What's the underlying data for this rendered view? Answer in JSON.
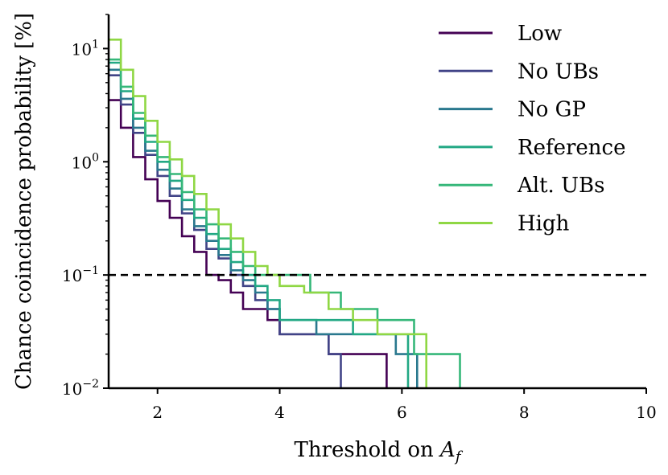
{
  "chart_data": {
    "type": "line",
    "xlabel": "Threshold on A_f",
    "ylabel": "Chance coincidence probability [%]",
    "xlim": [
      1.2,
      10
    ],
    "ylim": [
      0.01,
      20
    ],
    "yscale": "log",
    "grid": false,
    "legend_position": "top-right",
    "x_ticks": [
      {
        "value": 2,
        "label": "2"
      },
      {
        "value": 4,
        "label": "4"
      },
      {
        "value": 6,
        "label": "6"
      },
      {
        "value": 8,
        "label": "8"
      },
      {
        "value": 10,
        "label": "10"
      }
    ],
    "y_ticks": [
      {
        "value": 0.01,
        "base": "10",
        "exp": "−2"
      },
      {
        "value": 0.1,
        "base": "10",
        "exp": "−1"
      },
      {
        "value": 1,
        "base": "10",
        "exp": "0"
      },
      {
        "value": 10,
        "base": "10",
        "exp": "1"
      }
    ],
    "reference_line": {
      "y": 0.1,
      "style": "dashed",
      "color": "#000000"
    },
    "series": [
      {
        "name": "Low",
        "color": "#440154",
        "x": [
          1.2,
          1.4,
          1.6,
          1.8,
          2.0,
          2.2,
          2.4,
          2.6,
          2.8,
          3.0,
          3.2,
          3.4,
          3.6,
          3.8,
          4.0,
          4.4,
          4.8,
          5.2,
          5.75
        ],
        "y": [
          3.5,
          2.0,
          1.1,
          0.7,
          0.45,
          0.32,
          0.22,
          0.16,
          0.1,
          0.09,
          0.07,
          0.05,
          0.05,
          0.04,
          0.03,
          0.03,
          0.02,
          0.02,
          0.01
        ]
      },
      {
        "name": "No UBs",
        "color": "#414487",
        "x": [
          1.2,
          1.4,
          1.6,
          1.8,
          2.0,
          2.2,
          2.4,
          2.6,
          2.8,
          3.0,
          3.2,
          3.4,
          3.6,
          3.8,
          4.0,
          4.4,
          4.8,
          5.0
        ],
        "y": [
          5.8,
          3.2,
          1.8,
          1.15,
          0.75,
          0.5,
          0.35,
          0.25,
          0.17,
          0.14,
          0.1,
          0.08,
          0.06,
          0.05,
          0.03,
          0.03,
          0.02,
          0.01
        ]
      },
      {
        "name": "No GP",
        "color": "#2A788E",
        "x": [
          1.2,
          1.4,
          1.6,
          1.8,
          2.0,
          2.2,
          2.4,
          2.6,
          2.8,
          3.0,
          3.2,
          3.4,
          3.6,
          3.8,
          4.0,
          4.6,
          5.2,
          5.9,
          6.25
        ],
        "y": [
          6.5,
          3.6,
          2.0,
          1.25,
          0.85,
          0.58,
          0.38,
          0.27,
          0.2,
          0.15,
          0.11,
          0.09,
          0.07,
          0.05,
          0.04,
          0.03,
          0.03,
          0.02,
          0.01
        ]
      },
      {
        "name": "Reference",
        "color": "#22A884",
        "x": [
          1.2,
          1.4,
          1.6,
          1.8,
          2.0,
          2.2,
          2.4,
          2.6,
          2.8,
          3.0,
          3.2,
          3.4,
          3.6,
          3.8,
          4.0,
          4.6,
          5.2,
          5.9,
          6.1
        ],
        "y": [
          7.5,
          4.2,
          2.4,
          1.5,
          1.0,
          0.68,
          0.46,
          0.32,
          0.23,
          0.17,
          0.13,
          0.1,
          0.08,
          0.06,
          0.04,
          0.04,
          0.03,
          0.03,
          0.02
        ]
      },
      {
        "name": "Alt. UBs",
        "color": "#35B779",
        "x": [
          1.2,
          1.4,
          1.6,
          1.8,
          2.0,
          2.2,
          2.4,
          2.6,
          2.8,
          3.0,
          3.2,
          3.4,
          3.6,
          3.8,
          4.0,
          4.5,
          5.0,
          5.6,
          6.2,
          6.95
        ],
        "y": [
          8.0,
          4.6,
          2.7,
          1.7,
          1.1,
          0.78,
          0.54,
          0.38,
          0.28,
          0.21,
          0.16,
          0.12,
          0.1,
          0.1,
          0.1,
          0.07,
          0.05,
          0.04,
          0.02,
          0.01
        ]
      },
      {
        "name": "High",
        "color": "#8FD744",
        "x": [
          1.2,
          1.4,
          1.6,
          1.8,
          2.0,
          2.2,
          2.4,
          2.6,
          2.8,
          3.0,
          3.2,
          3.4,
          3.6,
          3.8,
          4.0,
          4.4,
          4.8,
          5.2,
          5.6,
          6.0,
          6.4
        ],
        "y": [
          12,
          6.5,
          3.8,
          2.3,
          1.5,
          1.05,
          0.75,
          0.52,
          0.38,
          0.28,
          0.21,
          0.16,
          0.12,
          0.1,
          0.08,
          0.07,
          0.05,
          0.04,
          0.03,
          0.03,
          0.01
        ]
      }
    ]
  }
}
